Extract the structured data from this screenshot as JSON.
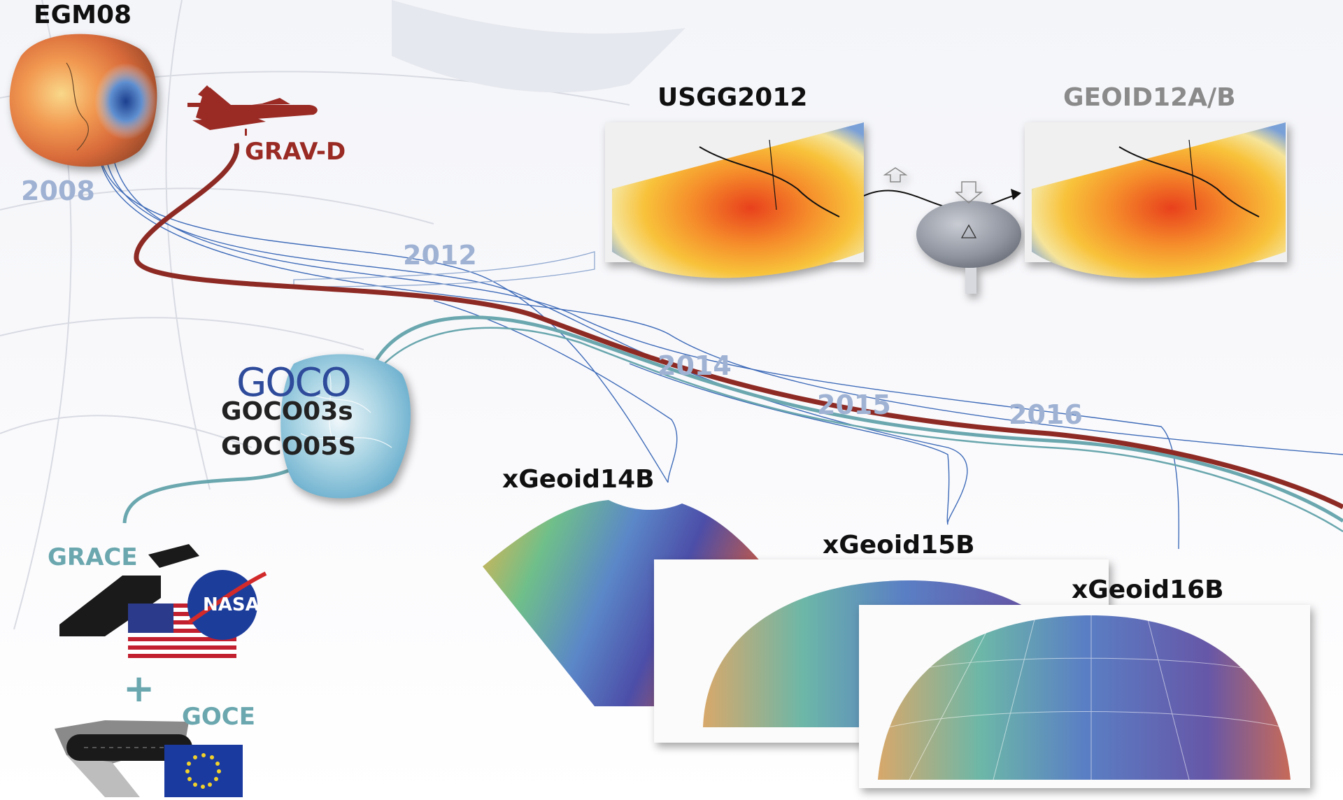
{
  "labels": {
    "egm08": "EGM08",
    "year_2008": "2008",
    "grav_d": "GRAV-D",
    "year_2012": "2012",
    "usgg2012": "USGG2012",
    "geoid12ab": "GEOID12A/B",
    "goco_logo": "GOCO",
    "goco03s": "GOCO03s",
    "goco05s": "GOCO05S",
    "year_2014": "2014",
    "year_2015": "2015",
    "year_2016": "2016",
    "xgeoid14b": "xGeoid14B",
    "xgeoid15b": "xGeoid15B",
    "xgeoid16b": "xGeoid16B",
    "grace": "GRACE",
    "nasa": "NASA",
    "plus": "+",
    "goce": "GOCE"
  },
  "colors": {
    "grav_d_line": "#8e2a24",
    "teal_line": "#6aa7ae",
    "blue_line": "#3e6bb8",
    "year_text": "#9fb2d3",
    "grav_d_text": "#9a2a24",
    "grace_goce_text": "#6aa7ae",
    "geoid12_text": "#8a8a8a"
  }
}
